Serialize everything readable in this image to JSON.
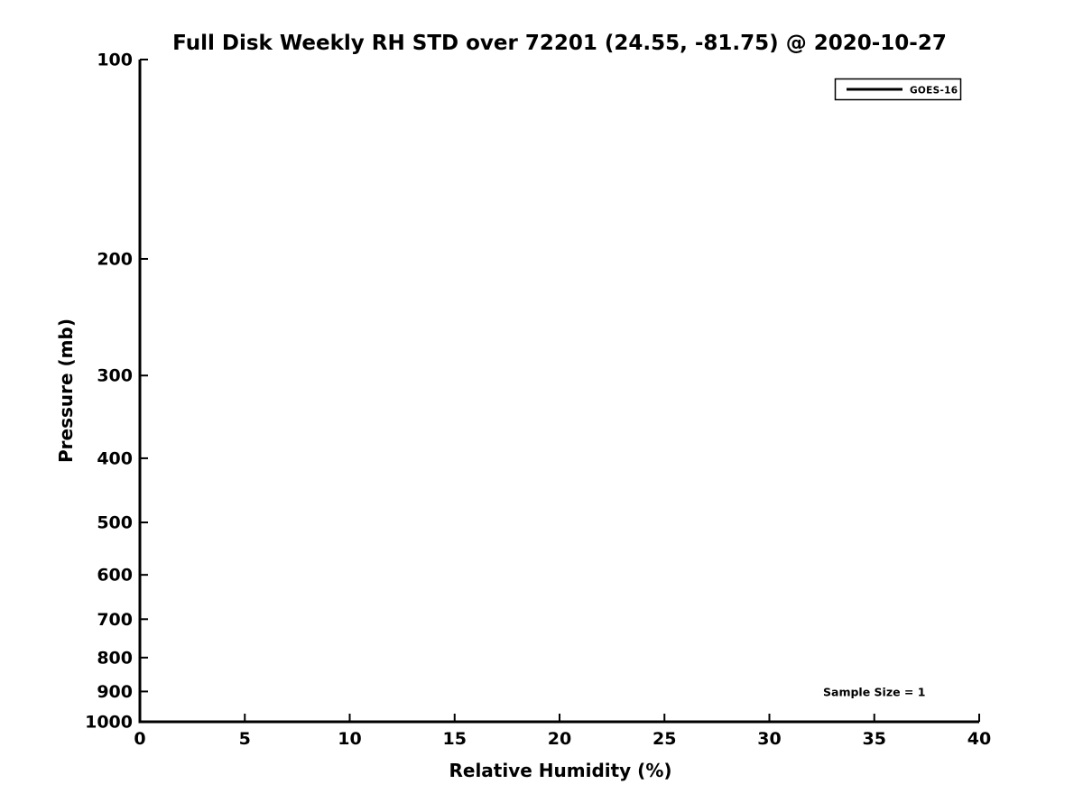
{
  "chart_data": {
    "type": "line",
    "title": "Full Disk Weekly RH STD over 72201 (24.55, -81.75) @ 2020-10-27",
    "xlabel": "Relative Humidity (%)",
    "ylabel": "Pressure (mb)",
    "xlim": [
      0,
      40
    ],
    "ylim": [
      100,
      1000
    ],
    "y_scale": "log",
    "y_direction": "values-increase-downward",
    "x_ticks": [
      0,
      5,
      10,
      15,
      20,
      25,
      30,
      35,
      40
    ],
    "y_ticks": [
      100,
      200,
      300,
      400,
      500,
      600,
      700,
      800,
      900,
      1000
    ],
    "grid": false,
    "legend_position": "upper-right",
    "series": [
      {
        "name": "GOES-16",
        "color": "#000000",
        "line_width": 3,
        "x": [],
        "y": []
      }
    ],
    "annotations": [
      {
        "text": "Sample Size = 1",
        "x": 35,
        "y": 900
      }
    ]
  },
  "colors": {
    "background": "#ffffff",
    "axis": "#000000",
    "text": "#000000"
  }
}
